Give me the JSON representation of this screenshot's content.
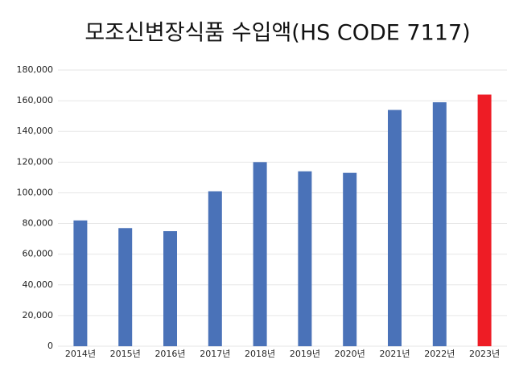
{
  "chart_data": {
    "type": "bar",
    "title": "모조신변장식품 수입액(HS CODE 7117)",
    "categories": [
      "2014년",
      "2015년",
      "2016년",
      "2017년",
      "2018년",
      "2019년",
      "2020년",
      "2021년",
      "2022년",
      "2023년"
    ],
    "values": [
      82000,
      77000,
      75000,
      101000,
      120000,
      114000,
      113000,
      154000,
      159000,
      164000
    ],
    "colors": [
      "#4a72b8",
      "#4a72b8",
      "#4a72b8",
      "#4a72b8",
      "#4a72b8",
      "#4a72b8",
      "#4a72b8",
      "#4a72b8",
      "#4a72b8",
      "#ee1c25"
    ],
    "ylim": [
      0,
      180000
    ],
    "yticks": [
      0,
      {
        "value": 20000,
        "label": "20,000"
      },
      {
        "value": 40000,
        "label": "40,000"
      },
      {
        "value": 60000,
        "label": "60,000"
      },
      {
        "value": 80000,
        "label": "80,000"
      },
      {
        "value": 100000,
        "label": "100,000"
      },
      {
        "value": 120000,
        "label": "120,000"
      },
      {
        "value": 140000,
        "label": "140,000"
      },
      {
        "value": 160000,
        "label": "160,000"
      },
      {
        "value": 180000,
        "label": "180,000"
      }
    ],
    "grid": true
  }
}
